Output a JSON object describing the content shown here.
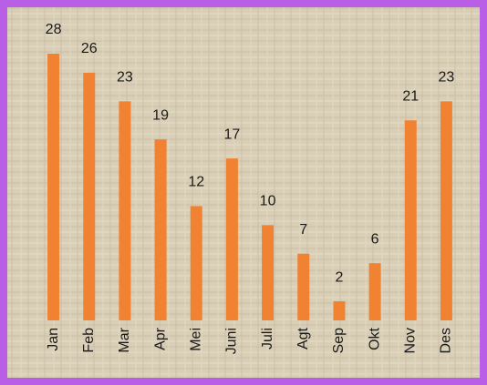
{
  "chart_data": {
    "type": "bar",
    "categories": [
      "Jan",
      "Feb",
      "Mar",
      "Apr",
      "Mei",
      "Juni",
      "Juli",
      "Agt",
      "Sep",
      "Okt",
      "Nov",
      "Des"
    ],
    "values": [
      28,
      26,
      23,
      19,
      12,
      17,
      10,
      7,
      2,
      6,
      21,
      23
    ],
    "color": "#f08232"
  }
}
